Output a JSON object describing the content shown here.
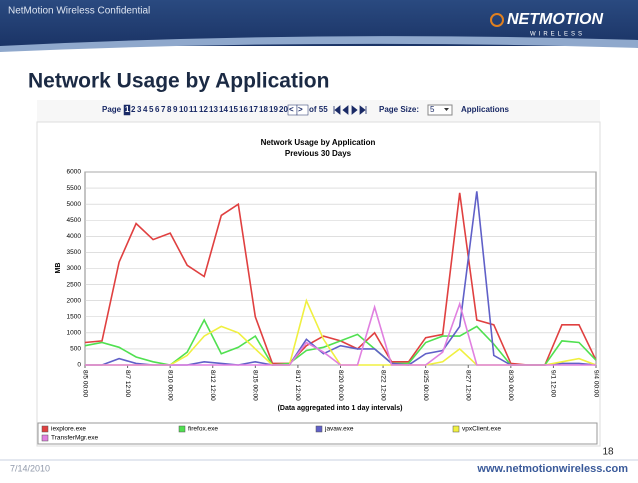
{
  "slide": {
    "confidential": "NetMotion Wireless Confidential",
    "logo": "NETMOTION",
    "logo_sub": "WIRELESS",
    "title": "Network Usage by Application",
    "number": "18",
    "date": "7/14/2010",
    "url": "www.netmotionwireless.com"
  },
  "pager": {
    "label": "Page",
    "pages": [
      1,
      2,
      3,
      4,
      5,
      6,
      7,
      8,
      9,
      10,
      11,
      12,
      13,
      14,
      15,
      16,
      17,
      18,
      19,
      20
    ],
    "prev": "<",
    "next": ">",
    "of": "of 55",
    "size_label": "Page Size:",
    "size": "5",
    "unit": "Applications"
  },
  "chart_data": {
    "type": "line",
    "title": "Network Usage by Application",
    "subtitle": "Previous 30 Days",
    "y_label": "MB",
    "x_label": "(Data aggregated into 1 day intervals)",
    "x": [
      "8/5 00:00",
      "8/6 00:00",
      "8/7 00:00",
      "8/8 00:00",
      "8/9 00:00",
      "8/10 00:00",
      "8/11 00:00",
      "8/12 00:00",
      "8/13 00:00",
      "8/14 00:00",
      "8/15 00:00",
      "8/16 00:00",
      "8/17 00:00",
      "8/18 00:00",
      "8/19 00:00",
      "8/20 00:00",
      "8/21 00:00",
      "8/22 00:00",
      "8/23 00:00",
      "8/24 00:00",
      "8/25 00:00",
      "8/26 00:00",
      "8/27 00:00",
      "8/28 00:00",
      "8/29 00:00",
      "8/30 00:00",
      "8/31 00:00",
      "9/1 00:00",
      "9/2 00:00",
      "9/3 00:00",
      "9/4 00:00"
    ],
    "xlim": [
      "8/5 00:00",
      "9/4 00:00"
    ],
    "xticks": [
      "8/5 00:00",
      "8/7 12:00",
      "8/10 00:00",
      "8/12 12:00",
      "8/15 00:00",
      "8/17 12:00",
      "8/20 00:00",
      "8/22 12:00",
      "8/25 00:00",
      "8/27 12:00",
      "8/30 00:00",
      "9/1 12:00",
      "9/4 00:00"
    ],
    "ylim": [
      0,
      6000
    ],
    "yticks": [
      0,
      500,
      1000,
      1500,
      2000,
      2500,
      3000,
      3500,
      4000,
      4500,
      5000,
      5500,
      6000
    ],
    "grid": true,
    "series": [
      {
        "name": "iexplore.exe",
        "color": "#e04040",
        "values": [
          700,
          750,
          3200,
          4400,
          3900,
          4100,
          3100,
          2750,
          4650,
          5000,
          1500,
          50,
          50,
          600,
          900,
          750,
          500,
          1000,
          100,
          100,
          850,
          950,
          5350,
          1400,
          1250,
          50,
          0,
          0,
          1250,
          1250,
          150
        ]
      },
      {
        "name": "firefox.exe",
        "color": "#50e050",
        "values": [
          600,
          700,
          550,
          250,
          100,
          0,
          400,
          1400,
          350,
          550,
          900,
          0,
          50,
          450,
          550,
          750,
          950,
          500,
          50,
          50,
          700,
          900,
          900,
          1200,
          650,
          0,
          0,
          0,
          750,
          700,
          150
        ]
      },
      {
        "name": "javaw.exe",
        "color": "#6060c8",
        "values": [
          0,
          0,
          200,
          50,
          0,
          0,
          0,
          100,
          50,
          0,
          100,
          0,
          0,
          800,
          350,
          600,
          500,
          500,
          50,
          0,
          350,
          450,
          1200,
          5400,
          300,
          0,
          0,
          0,
          50,
          50,
          0
        ]
      },
      {
        "name": "vpxClient.exe",
        "color": "#f0f040",
        "values": [
          0,
          0,
          0,
          0,
          0,
          0,
          300,
          900,
          1200,
          1000,
          500,
          0,
          0,
          2000,
          800,
          0,
          0,
          0,
          0,
          0,
          0,
          100,
          500,
          0,
          0,
          0,
          0,
          0,
          100,
          200,
          0
        ]
      },
      {
        "name": "TransferMgr.exe",
        "color": "#e080e0",
        "values": [
          0,
          0,
          0,
          0,
          0,
          0,
          0,
          0,
          0,
          0,
          0,
          0,
          0,
          700,
          400,
          0,
          0,
          1800,
          0,
          0,
          0,
          400,
          1900,
          0,
          0,
          0,
          0,
          0,
          0,
          0,
          0
        ]
      }
    ]
  }
}
